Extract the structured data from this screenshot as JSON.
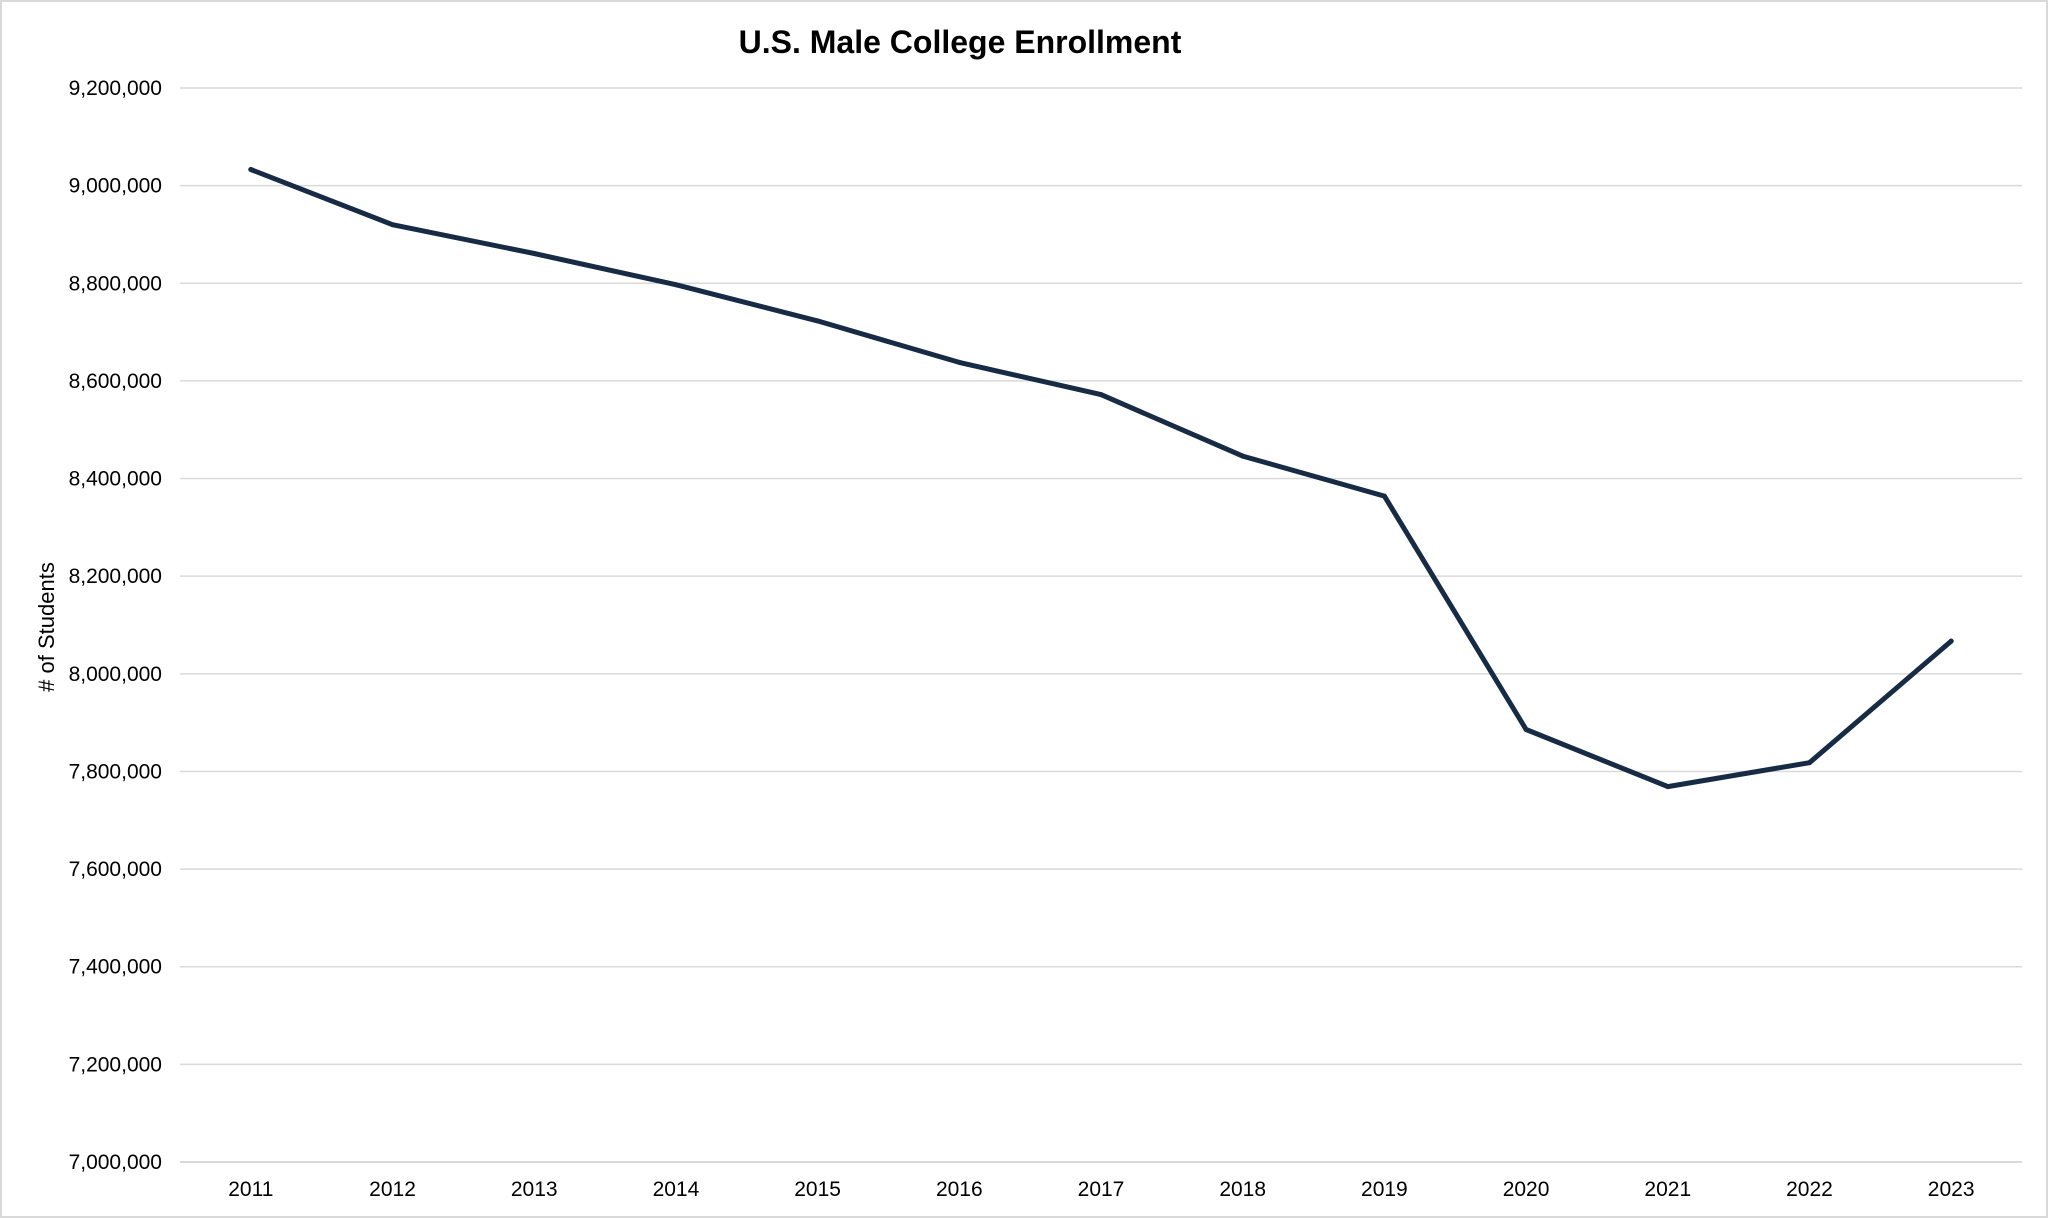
{
  "chart_data": {
    "type": "line",
    "title": "U.S. Male College Enrollment",
    "xlabel": "",
    "ylabel": "# of Students",
    "categories": [
      "2011",
      "2012",
      "2013",
      "2014",
      "2015",
      "2016",
      "2017",
      "2018",
      "2019",
      "2020",
      "2021",
      "2022",
      "2023"
    ],
    "series": [
      {
        "values": [
          9033000,
          8920000,
          8861000,
          8797000,
          8723000,
          8638000,
          8572000,
          8446000,
          8364000,
          7886000,
          7769000,
          7818000,
          8067000
        ],
        "color": "#172b45"
      }
    ],
    "ylim": [
      7000000,
      9200000
    ],
    "yticks": [
      7000000,
      7200000,
      7400000,
      7600000,
      7800000,
      8000000,
      8200000,
      8400000,
      8600000,
      8800000,
      9000000,
      9200000
    ],
    "ytick_labels": [
      "7,000,000",
      "7,200,000",
      "7,400,000",
      "7,600,000",
      "7,800,000",
      "8,000,000",
      "8,200,000",
      "8,400,000",
      "8,600,000",
      "8,800,000",
      "9,000,000",
      "9,200,000"
    ],
    "grid": true,
    "grid_color": "#d9d9d9",
    "legend": "none"
  }
}
